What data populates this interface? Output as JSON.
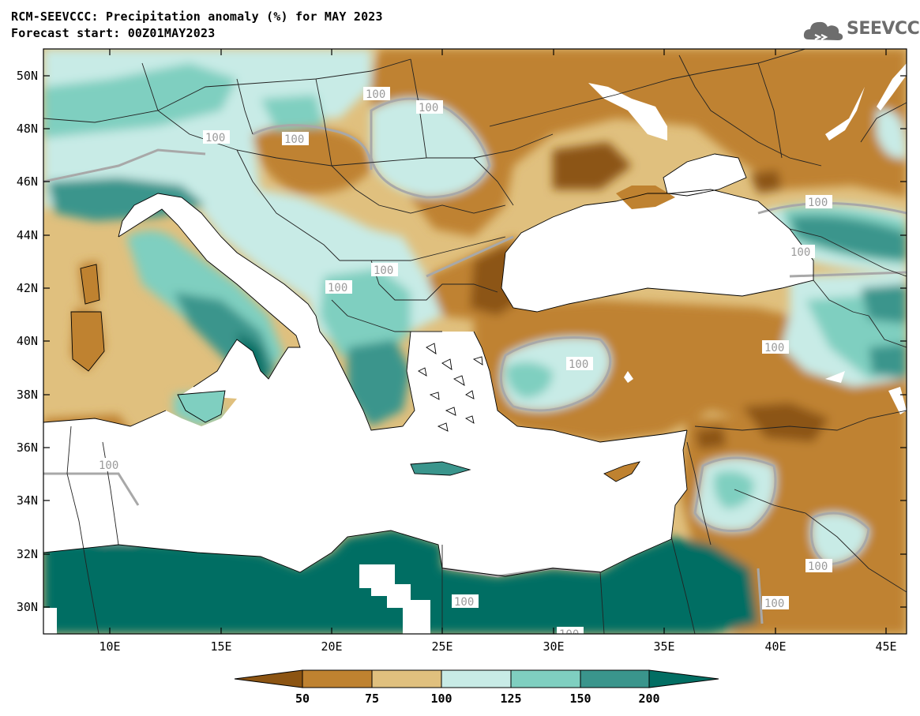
{
  "header": {
    "title_line1": "RCM-SEEVCCC: Precipitation anomaly (%) for MAY 2023",
    "title_line2": "Forecast start: 00Z01MAY2023"
  },
  "logo": {
    "text": "SEEVCCC",
    "icon": "cloud-icon",
    "color": "#6d6d6d"
  },
  "axes": {
    "lat_labels": [
      "50N",
      "48N",
      "46N",
      "44N",
      "42N",
      "40N",
      "38N",
      "36N",
      "34N",
      "32N",
      "30N"
    ],
    "lon_labels": [
      "10E",
      "15E",
      "20E",
      "25E",
      "30E",
      "35E",
      "40E",
      "45E"
    ]
  },
  "contour_labels": [
    "100",
    "100",
    "100",
    "100",
    "100",
    "100",
    "100",
    "100",
    "100",
    "100",
    "100",
    "100",
    "100",
    "100",
    "100",
    "100"
  ],
  "colorbar": {
    "levels": [
      "50",
      "75",
      "100",
      "125",
      "150",
      "200"
    ],
    "colors": [
      "#8c5412",
      "#bf8230",
      "#e0c07e",
      "#c8ebe6",
      "#7fcfc0",
      "#3a958c",
      "#026e63"
    ]
  },
  "palette": {
    "sea": "#ffffff",
    "very_dry": "#8c5412",
    "dry": "#bf8230",
    "slightly_dry": "#e0c07e",
    "slightly_wet": "#c8ebe6",
    "wet": "#7fcfc0",
    "very_wet": "#3a958c",
    "extreme_wet": "#026e63",
    "contour": "#a8a8a8",
    "border": "#222222"
  }
}
